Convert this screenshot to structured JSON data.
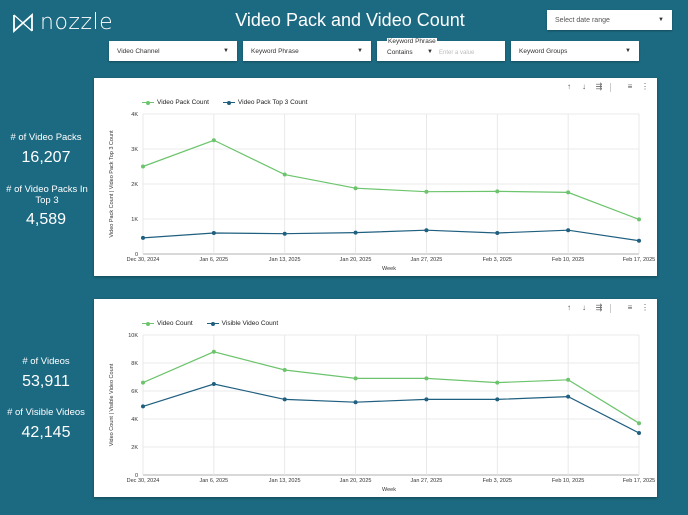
{
  "header": {
    "logo_text": "nozzle",
    "title": "Video Pack and Video Count",
    "date_range_label": "Select date range"
  },
  "filters": {
    "video_channel": "Video Channel",
    "keyword_phrase": "Keyword Phrase",
    "keyword_phrase_search_label": "Keyword Phrase",
    "keyword_phrase_operator": "Contains",
    "keyword_phrase_placeholder": "Enter a value",
    "keyword_groups": "Keyword Groups"
  },
  "kpis": {
    "video_packs_label": "# of Video Packs",
    "video_packs_value": "16,207",
    "video_packs_top3_label": "# of Video Packs In Top 3",
    "video_packs_top3_value": "4,589",
    "videos_label": "# of Videos",
    "videos_value": "53,911",
    "visible_videos_label": "# of Visible Videos",
    "visible_videos_value": "42,145"
  },
  "colors": {
    "background": "#1c6a82",
    "green_series": "#6cc46c",
    "blue_series": "#1f5f7f"
  },
  "chart_data": [
    {
      "type": "line",
      "x": [
        "Dec 30, 2024",
        "Jan 6, 2025",
        "Jan 13, 2025",
        "Jan 20, 2025",
        "Jan 27, 2025",
        "Feb 3, 2025",
        "Feb 10, 2025",
        "Feb 17, 2025"
      ],
      "series": [
        {
          "name": "Video Pack Count",
          "values": [
            2500,
            3250,
            2270,
            1880,
            1780,
            1790,
            1760,
            990
          ]
        },
        {
          "name": "Video Pack Top 3 Count",
          "values": [
            460,
            600,
            580,
            610,
            680,
            600,
            680,
            380
          ]
        }
      ],
      "xlabel": "Week",
      "ylabel": "Video Pack Count | Video Pack Top 3 Count",
      "ylim": [
        0,
        4000
      ],
      "yticks": [
        "0",
        "1K",
        "2K",
        "3K",
        "4K"
      ],
      "grid": true,
      "legend": "top-left"
    },
    {
      "type": "line",
      "x": [
        "Dec 30, 2024",
        "Jan 6, 2025",
        "Jan 13, 2025",
        "Jan 20, 2025",
        "Jan 27, 2025",
        "Feb 3, 2025",
        "Feb 10, 2025",
        "Feb 17, 2025"
      ],
      "series": [
        {
          "name": "Video Count",
          "values": [
            6600,
            8800,
            7500,
            6900,
            6900,
            6600,
            6800,
            3700
          ]
        },
        {
          "name": "Visible Video Count",
          "values": [
            4900,
            6500,
            5400,
            5200,
            5400,
            5400,
            5600,
            3000
          ]
        }
      ],
      "xlabel": "Week",
      "ylabel": "Video Count | Visible Video Count",
      "ylim": [
        0,
        10000
      ],
      "yticks": [
        "0",
        "2K",
        "4K",
        "6K",
        "8K",
        "10K"
      ],
      "grid": true,
      "legend": "top-left"
    }
  ]
}
